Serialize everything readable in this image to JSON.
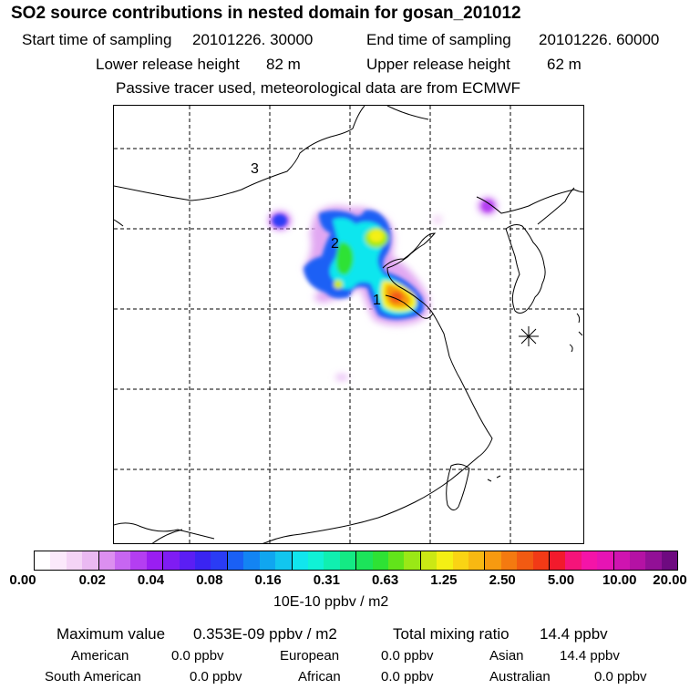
{
  "header": {
    "title": "SO2 source contributions in nested domain for gosan_201012",
    "start_label": "Start time of sampling",
    "start_value": "20101226. 30000",
    "end_label": "End time of sampling",
    "end_value": "20101226. 60000",
    "lower_label": "Lower release height",
    "lower_value": "82 m",
    "upper_label": "Upper release height",
    "upper_value": "62 m",
    "note": "Passive tracer used, meteorological data are from ECMWF"
  },
  "map": {
    "source_labels": [
      "1",
      "2",
      "3"
    ],
    "station_marker": "station-asterisk-icon"
  },
  "colorbar": {
    "ticks": [
      "0.00",
      "0.02",
      "0.04",
      "0.08",
      "0.16",
      "0.31",
      "0.63",
      "1.25",
      "2.50",
      "5.00",
      "10.00",
      "20.00"
    ],
    "unit": "10E-10 ppbv / m2",
    "colors": [
      "#ffffff",
      "#fbe9fb",
      "#f4d4f6",
      "#eab9f2",
      "#dc8ff0",
      "#c766f2",
      "#b43ef2",
      "#9a1ef2",
      "#7f1cf3",
      "#5b1ef4",
      "#3a24f2",
      "#2a3cf5",
      "#1a60f5",
      "#1384f3",
      "#10a6f0",
      "#12c6ef",
      "#11e6ee",
      "#10f2d6",
      "#10f0b0",
      "#14ea84",
      "#1ce45a",
      "#2ee234",
      "#62e41a",
      "#9ae816",
      "#cbe814",
      "#f4f014",
      "#fad414",
      "#f8b812",
      "#f79a10",
      "#f47a10",
      "#f25a12",
      "#f23a16",
      "#f21a2c",
      "#f5147a",
      "#f414a8",
      "#e614b4",
      "#cf14b0",
      "#b412a4",
      "#921096",
      "#6e0a80"
    ]
  },
  "stats": {
    "max_label": "Maximum value",
    "max_value": "0.353E-09 ppbv / m2",
    "total_label": "Total mixing ratio",
    "total_value": "14.4 ppbv",
    "regions": [
      {
        "name": "American",
        "value": "0.0 ppbv"
      },
      {
        "name": "European",
        "value": "0.0 ppbv"
      },
      {
        "name": "Asian",
        "value": "14.4 ppbv"
      },
      {
        "name": "South American",
        "value": "0.0 ppbv"
      },
      {
        "name": "African",
        "value": "0.0 ppbv"
      },
      {
        "name": "Australian",
        "value": "0.0 ppbv"
      }
    ]
  }
}
